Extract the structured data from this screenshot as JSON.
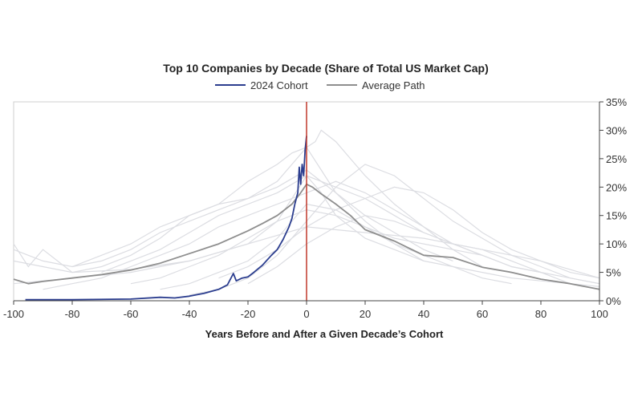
{
  "chart_data": {
    "type": "line",
    "title": "Top 10 Companies by Decade (Share of Total US Market Cap)",
    "xlabel": "Years Before and After a Given Decade’s Cohort",
    "ylabel": "",
    "xlim": [
      -100,
      100
    ],
    "ylim": [
      0,
      35
    ],
    "x_ticks": [
      -100,
      -80,
      -60,
      -40,
      -20,
      0,
      20,
      40,
      60,
      80,
      100
    ],
    "x_tick_labels": [
      "-100",
      "-80",
      "-60",
      "-40",
      "-20",
      "0",
      "20",
      "40",
      "60",
      "80",
      "100"
    ],
    "y_ticks": [
      0,
      5,
      10,
      15,
      20,
      25,
      30,
      35
    ],
    "y_tick_labels": [
      "0%",
      "5%",
      "10%",
      "15%",
      "20%",
      "25%",
      "30%",
      "35%"
    ],
    "y_axis_side": "right",
    "legend_position": "top-center",
    "reference_line": {
      "x": 0,
      "color": "#c0392b"
    },
    "series": [
      {
        "name": "2024 Cohort",
        "color": "#2c3e8f",
        "x": [
          -96,
          -80,
          -60,
          -50,
          -45,
          -40,
          -35,
          -30,
          -27,
          -25,
          -24,
          -22,
          -20,
          -18,
          -15,
          -12,
          -10,
          -8,
          -6,
          -5,
          -4,
          -3,
          -2.5,
          -2,
          -1.5,
          -1,
          -0.5,
          0
        ],
        "y": [
          0.2,
          0.2,
          0.3,
          0.6,
          0.5,
          0.8,
          1.3,
          2.0,
          2.8,
          4.8,
          3.5,
          4.0,
          4.2,
          5.0,
          6.3,
          8.0,
          9.0,
          10.8,
          13.0,
          14.5,
          17.0,
          19.0,
          23.5,
          20.5,
          24.0,
          22.0,
          26.5,
          29.0
        ]
      },
      {
        "name": "Average Path",
        "color": "#8e8e8e",
        "x": [
          -100,
          -95,
          -90,
          -80,
          -70,
          -60,
          -50,
          -40,
          -30,
          -20,
          -15,
          -10,
          -5,
          -2,
          0,
          2,
          5,
          10,
          15,
          20,
          25,
          30,
          40,
          50,
          60,
          70,
          80,
          90,
          100
        ],
        "y": [
          3.8,
          3.0,
          3.4,
          4.0,
          4.6,
          5.4,
          6.6,
          8.3,
          10.0,
          12.3,
          13.6,
          15.0,
          17.0,
          19.0,
          20.5,
          20.0,
          18.8,
          17.0,
          15.0,
          12.5,
          11.5,
          10.5,
          8.0,
          7.6,
          5.9,
          5.0,
          3.8,
          3.0,
          2.0
        ]
      }
    ],
    "background_series": [
      {
        "x": [
          -100,
          -90,
          -80,
          -60,
          -40,
          -20,
          -10,
          -5,
          0,
          5,
          10,
          20,
          30,
          40,
          50,
          60,
          70,
          80,
          90,
          100
        ],
        "y": [
          7,
          6,
          5,
          5.5,
          7,
          10,
          14,
          18,
          22,
          19,
          15,
          11,
          9,
          7,
          6,
          5,
          4,
          3.5,
          3,
          2.5
        ]
      },
      {
        "x": [
          -100,
          -95,
          -90,
          -80,
          -70,
          -60,
          -50,
          -40,
          -30,
          -20,
          -10,
          -5,
          0,
          5,
          10,
          20,
          30,
          40,
          50
        ],
        "y": [
          10,
          6,
          9,
          5,
          6,
          8,
          11,
          15,
          17,
          21,
          24,
          26,
          27,
          23,
          19,
          15,
          12,
          9,
          7
        ]
      },
      {
        "x": [
          -80,
          -70,
          -60,
          -50,
          -40,
          -30,
          -20,
          -10,
          -5,
          0,
          3,
          5,
          10,
          15,
          20,
          30,
          40,
          50,
          60
        ],
        "y": [
          6,
          7,
          9,
          12,
          14,
          16,
          18,
          21,
          24,
          27,
          28,
          30,
          28,
          25,
          22,
          17,
          13,
          9,
          6
        ]
      },
      {
        "x": [
          -60,
          -50,
          -40,
          -30,
          -20,
          -10,
          0,
          10,
          20,
          30,
          40,
          50,
          60,
          70,
          80,
          90,
          100
        ],
        "y": [
          3,
          4,
          6,
          8,
          11,
          14,
          16,
          15,
          13,
          11,
          10,
          9,
          8,
          6,
          5,
          4,
          3
        ]
      },
      {
        "x": [
          -90,
          -80,
          -70,
          -60,
          -50,
          -40,
          -30,
          -20,
          -10,
          0,
          10,
          20,
          30,
          40,
          50,
          60,
          70,
          80
        ],
        "y": [
          2,
          3,
          4,
          6,
          8,
          10,
          13,
          15,
          17,
          19,
          21,
          19,
          16,
          13,
          10,
          8,
          6,
          5
        ]
      },
      {
        "x": [
          -40,
          -30,
          -20,
          -10,
          0,
          10,
          20,
          30,
          40,
          50,
          60,
          70,
          80,
          90,
          100
        ],
        "y": [
          1,
          2,
          4,
          8,
          14,
          20,
          24,
          22,
          18,
          14,
          11,
          8,
          6,
          4,
          3
        ]
      },
      {
        "x": [
          -100,
          -80,
          -60,
          -40,
          -20,
          0,
          20,
          40,
          60,
          80,
          100
        ],
        "y": [
          3,
          4,
          5,
          7,
          10,
          13,
          12,
          11,
          9,
          7,
          4
        ]
      },
      {
        "x": [
          -70,
          -60,
          -50,
          -40,
          -30,
          -20,
          -10,
          0,
          10,
          20,
          30,
          40,
          50,
          60
        ],
        "y": [
          5,
          7,
          9,
          12,
          15,
          17,
          19,
          22,
          20,
          18,
          15,
          12,
          10,
          8
        ]
      },
      {
        "x": [
          -50,
          -40,
          -30,
          -20,
          -10,
          0,
          10,
          20,
          30,
          40,
          50,
          60,
          70
        ],
        "y": [
          2,
          3,
          5,
          7,
          11,
          17,
          16,
          13,
          10,
          8,
          6,
          4,
          3
        ]
      },
      {
        "x": [
          -100,
          -90,
          -80,
          -70,
          -60,
          -50,
          -40,
          -30,
          -20,
          -10,
          0,
          10,
          20,
          30,
          40
        ],
        "y": [
          9,
          7,
          6,
          8,
          10,
          13,
          15,
          17,
          18,
          20,
          23,
          19,
          14,
          10,
          7
        ]
      },
      {
        "x": [
          -30,
          -20,
          -10,
          0,
          10,
          20,
          30,
          40,
          50,
          60,
          70,
          80,
          90,
          100
        ],
        "y": [
          4,
          6,
          9,
          13,
          16,
          18,
          20,
          19,
          16,
          12,
          9,
          7,
          5,
          4
        ]
      },
      {
        "x": [
          -20,
          -10,
          0,
          10,
          20,
          30,
          40,
          50,
          60,
          70,
          80,
          90,
          100
        ],
        "y": [
          3,
          6,
          10,
          13,
          15,
          14,
          12,
          10,
          9,
          7,
          5,
          3,
          2
        ]
      }
    ]
  }
}
